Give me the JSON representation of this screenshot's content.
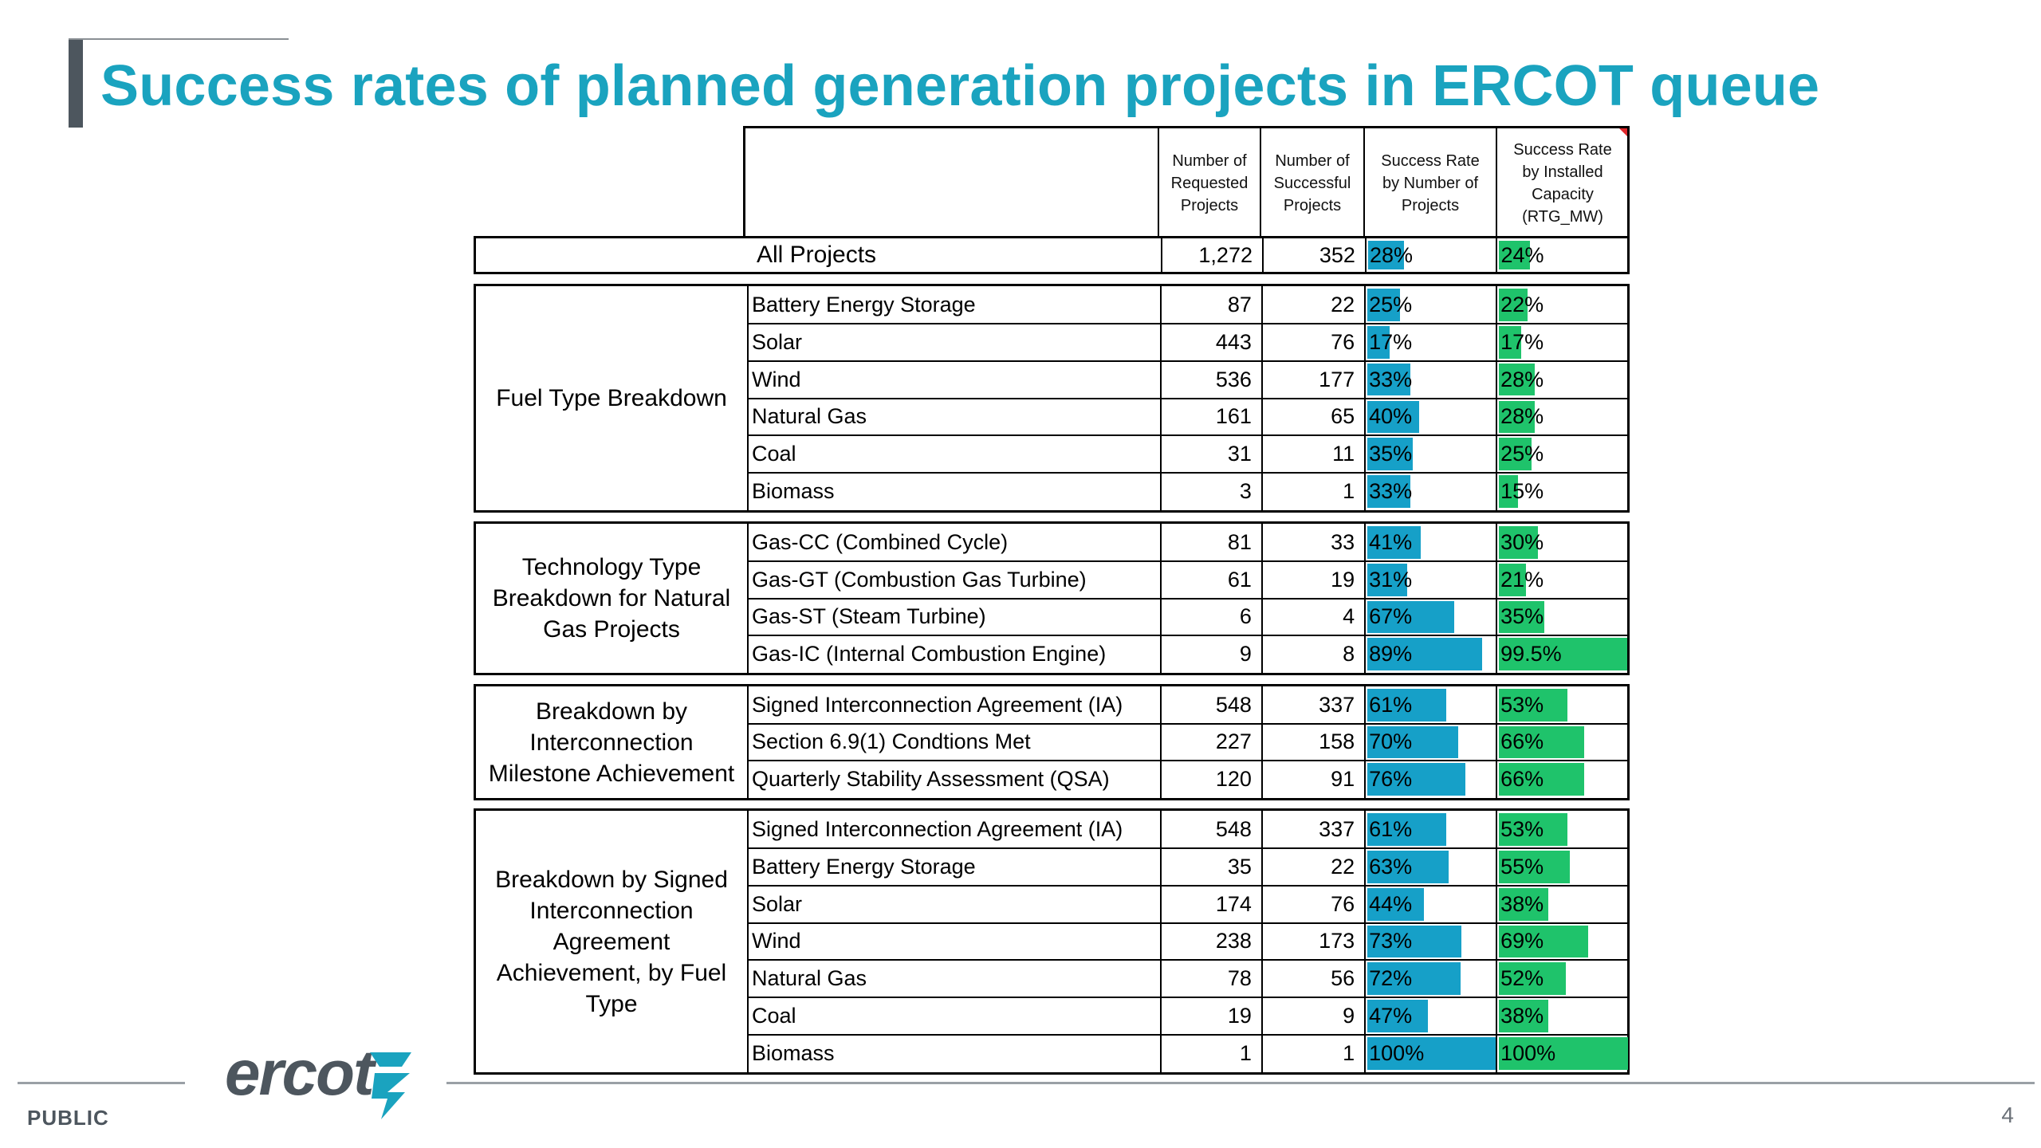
{
  "title": "Success rates of planned generation projects in ERCOT queue",
  "headers": [
    "Number of\nRequested\nProjects",
    "Number of\nSuccessful\nProjects",
    "Success Rate\nby Number of\nProjects",
    "Success Rate\nby Installed\nCapacity\n(RTG_MW)"
  ],
  "all_projects": {
    "label": "All Projects",
    "requested": "1,272",
    "successful": "352",
    "rate_num": "28%",
    "rate_num_value": 28,
    "rate_cap": "24%",
    "rate_cap_value": 24
  },
  "groups": [
    {
      "label": "Fuel Type Breakdown",
      "rows": [
        {
          "name": "Battery Energy Storage",
          "requested": "87",
          "successful": "22",
          "rate_num": "25%",
          "rate_num_value": 25,
          "rate_cap": "22%",
          "rate_cap_value": 22
        },
        {
          "name": "Solar",
          "requested": "443",
          "successful": "76",
          "rate_num": "17%",
          "rate_num_value": 17,
          "rate_cap": "17%",
          "rate_cap_value": 17
        },
        {
          "name": "Wind",
          "requested": "536",
          "successful": "177",
          "rate_num": "33%",
          "rate_num_value": 33,
          "rate_cap": "28%",
          "rate_cap_value": 28
        },
        {
          "name": "Natural Gas",
          "requested": "161",
          "successful": "65",
          "rate_num": "40%",
          "rate_num_value": 40,
          "rate_cap": "28%",
          "rate_cap_value": 28
        },
        {
          "name": "Coal",
          "requested": "31",
          "successful": "11",
          "rate_num": "35%",
          "rate_num_value": 35,
          "rate_cap": "25%",
          "rate_cap_value": 25
        },
        {
          "name": "Biomass",
          "requested": "3",
          "successful": "1",
          "rate_num": "33%",
          "rate_num_value": 33,
          "rate_cap": "15%",
          "rate_cap_value": 15
        }
      ]
    },
    {
      "label": "Technology Type\nBreakdown for Natural\nGas Projects",
      "rows": [
        {
          "name": "Gas-CC (Combined Cycle)",
          "requested": "81",
          "successful": "33",
          "rate_num": "41%",
          "rate_num_value": 41,
          "rate_cap": "30%",
          "rate_cap_value": 30
        },
        {
          "name": "Gas-GT (Combustion Gas Turbine)",
          "requested": "61",
          "successful": "19",
          "rate_num": "31%",
          "rate_num_value": 31,
          "rate_cap": "21%",
          "rate_cap_value": 21
        },
        {
          "name": "Gas-ST (Steam Turbine)",
          "requested": "6",
          "successful": "4",
          "rate_num": "67%",
          "rate_num_value": 67,
          "rate_cap": "35%",
          "rate_cap_value": 35
        },
        {
          "name": "Gas-IC (Internal Combustion Engine)",
          "requested": "9",
          "successful": "8",
          "rate_num": "89%",
          "rate_num_value": 89,
          "rate_cap": "99.5%",
          "rate_cap_value": 99.5
        }
      ]
    },
    {
      "label": "Breakdown by\nInterconnection\nMilestone Achievement",
      "rows": [
        {
          "name": "Signed Interconnection Agreement (IA)",
          "requested": "548",
          "successful": "337",
          "rate_num": "61%",
          "rate_num_value": 61,
          "rate_cap": "53%",
          "rate_cap_value": 53
        },
        {
          "name": "Section 6.9(1) Condtions Met",
          "requested": "227",
          "successful": "158",
          "rate_num": "70%",
          "rate_num_value": 70,
          "rate_cap": "66%",
          "rate_cap_value": 66
        },
        {
          "name": "Quarterly Stability Assessment (QSA)",
          "requested": "120",
          "successful": "91",
          "rate_num": "76%",
          "rate_num_value": 76,
          "rate_cap": "66%",
          "rate_cap_value": 66
        }
      ]
    },
    {
      "label": "Breakdown by Signed\nInterconnection\nAgreement\nAchievement, by Fuel\nType",
      "rows": [
        {
          "name": "Signed Interconnection Agreement (IA)",
          "requested": "548",
          "successful": "337",
          "rate_num": "61%",
          "rate_num_value": 61,
          "rate_cap": "53%",
          "rate_cap_value": 53
        },
        {
          "name": "Battery Energy Storage",
          "requested": "35",
          "successful": "22",
          "rate_num": "63%",
          "rate_num_value": 63,
          "rate_cap": "55%",
          "rate_cap_value": 55
        },
        {
          "name": "Solar",
          "requested": "174",
          "successful": "76",
          "rate_num": "44%",
          "rate_num_value": 44,
          "rate_cap": "38%",
          "rate_cap_value": 38
        },
        {
          "name": "Wind",
          "requested": "238",
          "successful": "173",
          "rate_num": "73%",
          "rate_num_value": 73,
          "rate_cap": "69%",
          "rate_cap_value": 69
        },
        {
          "name": "Natural Gas",
          "requested": "78",
          "successful": "56",
          "rate_num": "72%",
          "rate_num_value": 72,
          "rate_cap": "52%",
          "rate_cap_value": 52
        },
        {
          "name": "Coal",
          "requested": "19",
          "successful": "9",
          "rate_num": "47%",
          "rate_num_value": 47,
          "rate_cap": "38%",
          "rate_cap_value": 38
        },
        {
          "name": "Biomass",
          "requested": "1",
          "successful": "1",
          "rate_num": "100%",
          "rate_num_value": 100,
          "rate_cap": "100%",
          "rate_cap_value": 100
        }
      ]
    }
  ],
  "colors": {
    "title": "#1aa3bf",
    "bar_number": "#16a0c8",
    "bar_capacity": "#1fc36b"
  },
  "footer": {
    "classification": "PUBLIC",
    "logo_text": "ercot",
    "page_number": "4"
  }
}
